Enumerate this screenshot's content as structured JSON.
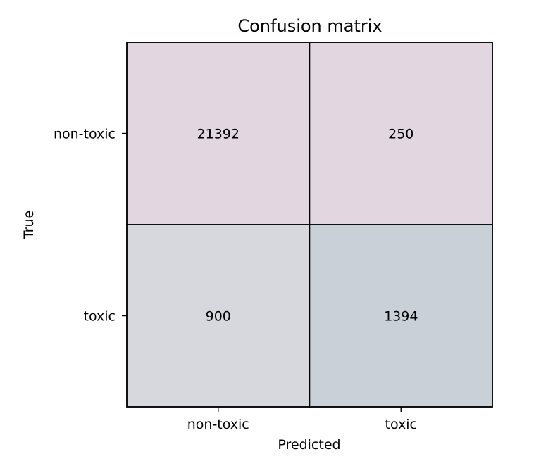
{
  "chart_data": {
    "type": "heatmap",
    "title": "Confusion matrix",
    "xlabel": "Predicted",
    "ylabel": "True",
    "x_categories": [
      "non-toxic",
      "toxic"
    ],
    "y_categories": [
      "non-toxic",
      "toxic"
    ],
    "values": [
      [
        21392,
        250
      ],
      [
        900,
        1394
      ]
    ],
    "cell_colors": [
      [
        "#e2d7e1",
        "#e2d7e1"
      ],
      [
        "#d7d7de",
        "#c9d0d7"
      ]
    ],
    "grid_color": "#000000"
  }
}
